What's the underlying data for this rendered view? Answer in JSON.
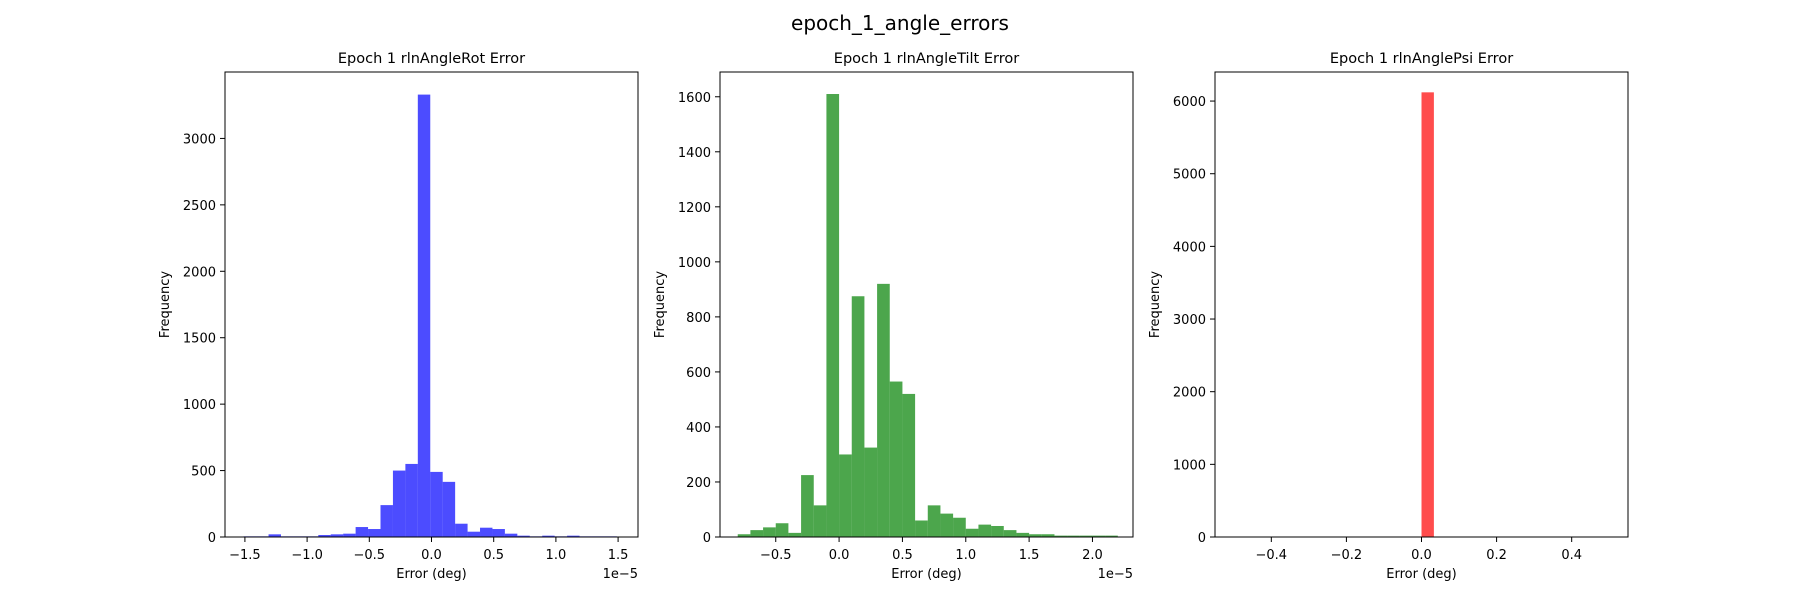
{
  "figure": {
    "title": "epoch_1_angle_errors"
  },
  "chart_data": [
    {
      "type": "bar",
      "title": "Epoch 1 rlnAngleRot Error",
      "xlabel": "Error (deg)",
      "ylabel": "Frequency",
      "x_scale_note": "1e−5",
      "color": "#0000ff",
      "xlim": [
        -1.66,
        1.66
      ],
      "ylim": [
        0,
        3500
      ],
      "xticks": [
        -1.5,
        -1.0,
        -0.5,
        0.0,
        0.5,
        1.0,
        1.5
      ],
      "xtick_labels": [
        "−1.5",
        "−1.0",
        "−0.5",
        "0.0",
        "0.5",
        "1.0",
        "1.5"
      ],
      "yticks": [
        0,
        500,
        1000,
        1500,
        2000,
        2500,
        3000
      ],
      "ytick_labels": [
        "0",
        "500",
        "1000",
        "1500",
        "2000",
        "2500",
        "3000"
      ],
      "bin_edges": [
        -1.51,
        -1.41,
        -1.31,
        -1.21,
        -1.11,
        -1.01,
        -0.91,
        -0.81,
        -0.71,
        -0.61,
        -0.51,
        -0.41,
        -0.31,
        -0.21,
        -0.11,
        -0.01,
        0.09,
        0.19,
        0.29,
        0.39,
        0.49,
        0.59,
        0.69,
        0.79,
        0.89,
        0.99,
        1.09,
        1.19,
        1.29,
        1.39,
        1.49
      ],
      "values": [
        5,
        5,
        20,
        5,
        5,
        5,
        15,
        20,
        25,
        75,
        60,
        240,
        500,
        550,
        3330,
        490,
        415,
        100,
        40,
        70,
        60,
        25,
        10,
        5,
        10,
        5,
        10,
        5,
        5,
        5
      ]
    },
    {
      "type": "bar",
      "title": "Epoch 1 rlnAngleTilt Error",
      "xlabel": "Error (deg)",
      "ylabel": "Frequency",
      "x_scale_note": "1e−5",
      "color": "#008000",
      "xlim": [
        -0.94,
        2.32
      ],
      "ylim": [
        0,
        1690
      ],
      "xticks": [
        -0.5,
        0.0,
        0.5,
        1.0,
        1.5,
        2.0
      ],
      "xtick_labels": [
        "−0.5",
        "0.0",
        "0.5",
        "1.0",
        "1.5",
        "2.0"
      ],
      "yticks": [
        0,
        200,
        400,
        600,
        800,
        1000,
        1200,
        1400,
        1600
      ],
      "ytick_labels": [
        "0",
        "200",
        "400",
        "600",
        "800",
        "1000",
        "1200",
        "1400",
        "1600"
      ],
      "bin_edges": [
        -0.8,
        -0.7,
        -0.6,
        -0.5,
        -0.4,
        -0.3,
        -0.2,
        -0.1,
        0.0,
        0.1,
        0.2,
        0.3,
        0.4,
        0.5,
        0.6,
        0.7,
        0.8,
        0.9,
        1.0,
        1.1,
        1.2,
        1.3,
        1.4,
        1.5,
        1.6,
        1.7,
        1.8,
        1.9,
        2.0,
        2.1,
        2.2
      ],
      "values": [
        10,
        25,
        35,
        50,
        15,
        225,
        115,
        1610,
        300,
        875,
        325,
        920,
        565,
        520,
        60,
        115,
        85,
        70,
        30,
        45,
        40,
        25,
        15,
        10,
        10,
        5,
        5,
        5,
        5,
        5
      ]
    },
    {
      "type": "bar",
      "title": "Epoch 1 rlnAnglePsi Error",
      "xlabel": "Error (deg)",
      "ylabel": "Frequency",
      "x_scale_note": "",
      "color": "#ff0000",
      "xlim": [
        -0.55,
        0.55
      ],
      "ylim": [
        0,
        6400
      ],
      "xticks": [
        -0.4,
        -0.2,
        0.0,
        0.2,
        0.4
      ],
      "xtick_labels": [
        "−0.4",
        "−0.2",
        "0.0",
        "0.2",
        "0.4"
      ],
      "yticks": [
        0,
        1000,
        2000,
        3000,
        4000,
        5000,
        6000
      ],
      "ytick_labels": [
        "0",
        "1000",
        "2000",
        "3000",
        "4000",
        "5000",
        "6000"
      ],
      "bin_edges": [
        0.0,
        0.033
      ],
      "values": [
        6120
      ]
    }
  ]
}
